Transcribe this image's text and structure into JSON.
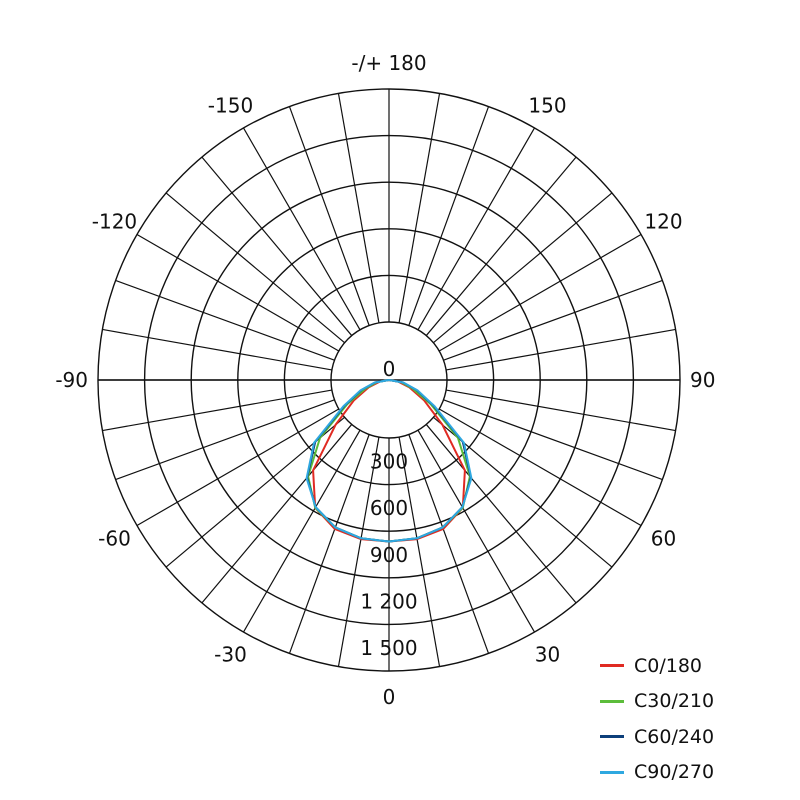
{
  "chart_data": {
    "type": "polar-line",
    "radial_ticks": [
      "0",
      "300",
      "600",
      "900",
      "1 200",
      "1 500"
    ],
    "radial_range": [
      0,
      1500
    ],
    "radial_grid_step": 300,
    "angle_step_deg": 10,
    "angle_labels": [
      {
        "angle": 180,
        "text": "-/+ 180"
      },
      {
        "angle": 150,
        "text": "150"
      },
      {
        "angle": -150,
        "text": "-150"
      },
      {
        "angle": 120,
        "text": "120"
      },
      {
        "angle": -120,
        "text": "-120"
      },
      {
        "angle": 90,
        "text": "90"
      },
      {
        "angle": -90,
        "text": "-90"
      },
      {
        "angle": 60,
        "text": "60"
      },
      {
        "angle": -60,
        "text": "-60"
      },
      {
        "angle": 30,
        "text": "30"
      },
      {
        "angle": -30,
        "text": "-30"
      },
      {
        "angle": 0,
        "text": "0"
      }
    ],
    "grid": true,
    "legend_position": "bottom-right",
    "series": [
      {
        "name": "C0/180",
        "color": "#e02a22",
        "points": [
          [
            -90,
            0
          ],
          [
            -80,
            60
          ],
          [
            -70,
            140
          ],
          [
            -60,
            260
          ],
          [
            -50,
            450
          ],
          [
            -40,
            760
          ],
          [
            -30,
            950
          ],
          [
            -20,
            1020
          ],
          [
            -10,
            1040
          ],
          [
            0,
            1040
          ],
          [
            10,
            1040
          ],
          [
            20,
            1020
          ],
          [
            30,
            950
          ],
          [
            40,
            760
          ],
          [
            50,
            450
          ],
          [
            60,
            260
          ],
          [
            70,
            140
          ],
          [
            80,
            60
          ],
          [
            90,
            0
          ]
        ]
      },
      {
        "name": "C30/210",
        "color": "#5cbd3b",
        "points": [
          [
            -90,
            0
          ],
          [
            -80,
            80
          ],
          [
            -70,
            160
          ],
          [
            -60,
            310
          ],
          [
            -50,
            580
          ],
          [
            -40,
            810
          ],
          [
            -30,
            950
          ],
          [
            -20,
            1010
          ],
          [
            -10,
            1035
          ],
          [
            0,
            1040
          ],
          [
            10,
            1035
          ],
          [
            20,
            1010
          ],
          [
            30,
            950
          ],
          [
            40,
            810
          ],
          [
            50,
            580
          ],
          [
            60,
            310
          ],
          [
            70,
            160
          ],
          [
            80,
            80
          ],
          [
            90,
            0
          ]
        ]
      },
      {
        "name": "C60/240",
        "color": "#0d3f7a",
        "points": [
          [
            -90,
            0
          ],
          [
            -80,
            90
          ],
          [
            -70,
            190
          ],
          [
            -60,
            330
          ],
          [
            -50,
            620
          ],
          [
            -40,
            820
          ],
          [
            -30,
            945
          ],
          [
            -20,
            1010
          ],
          [
            -10,
            1035
          ],
          [
            0,
            1040
          ],
          [
            10,
            1035
          ],
          [
            20,
            1010
          ],
          [
            30,
            945
          ],
          [
            40,
            820
          ],
          [
            50,
            620
          ],
          [
            60,
            330
          ],
          [
            70,
            190
          ],
          [
            80,
            90
          ],
          [
            90,
            0
          ]
        ]
      },
      {
        "name": "C90/270",
        "color": "#2fa8e0",
        "points": [
          [
            -90,
            0
          ],
          [
            -80,
            95
          ],
          [
            -70,
            195
          ],
          [
            -60,
            340
          ],
          [
            -50,
            630
          ],
          [
            -40,
            825
          ],
          [
            -30,
            945
          ],
          [
            -20,
            1010
          ],
          [
            -10,
            1035
          ],
          [
            0,
            1040
          ],
          [
            10,
            1035
          ],
          [
            20,
            1010
          ],
          [
            30,
            945
          ],
          [
            40,
            825
          ],
          [
            50,
            630
          ],
          [
            60,
            340
          ],
          [
            70,
            195
          ],
          [
            80,
            95
          ],
          [
            90,
            0
          ]
        ]
      }
    ]
  }
}
